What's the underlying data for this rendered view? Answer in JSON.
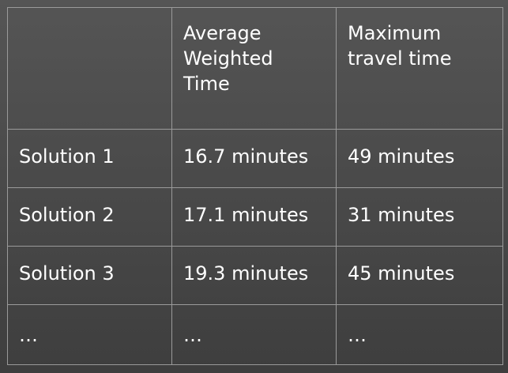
{
  "table": {
    "header": [
      "",
      "Average Weighted Time",
      "Maximum travel time"
    ],
    "rows": [
      [
        "Solution 1",
        "16.7 minutes",
        "49 minutes"
      ],
      [
        "Solution 2",
        "17.1 minutes",
        "31 minutes"
      ],
      [
        "Solution 3",
        "19.3 minutes",
        "45 minutes"
      ],
      [
        "…",
        "…",
        "…"
      ]
    ]
  }
}
